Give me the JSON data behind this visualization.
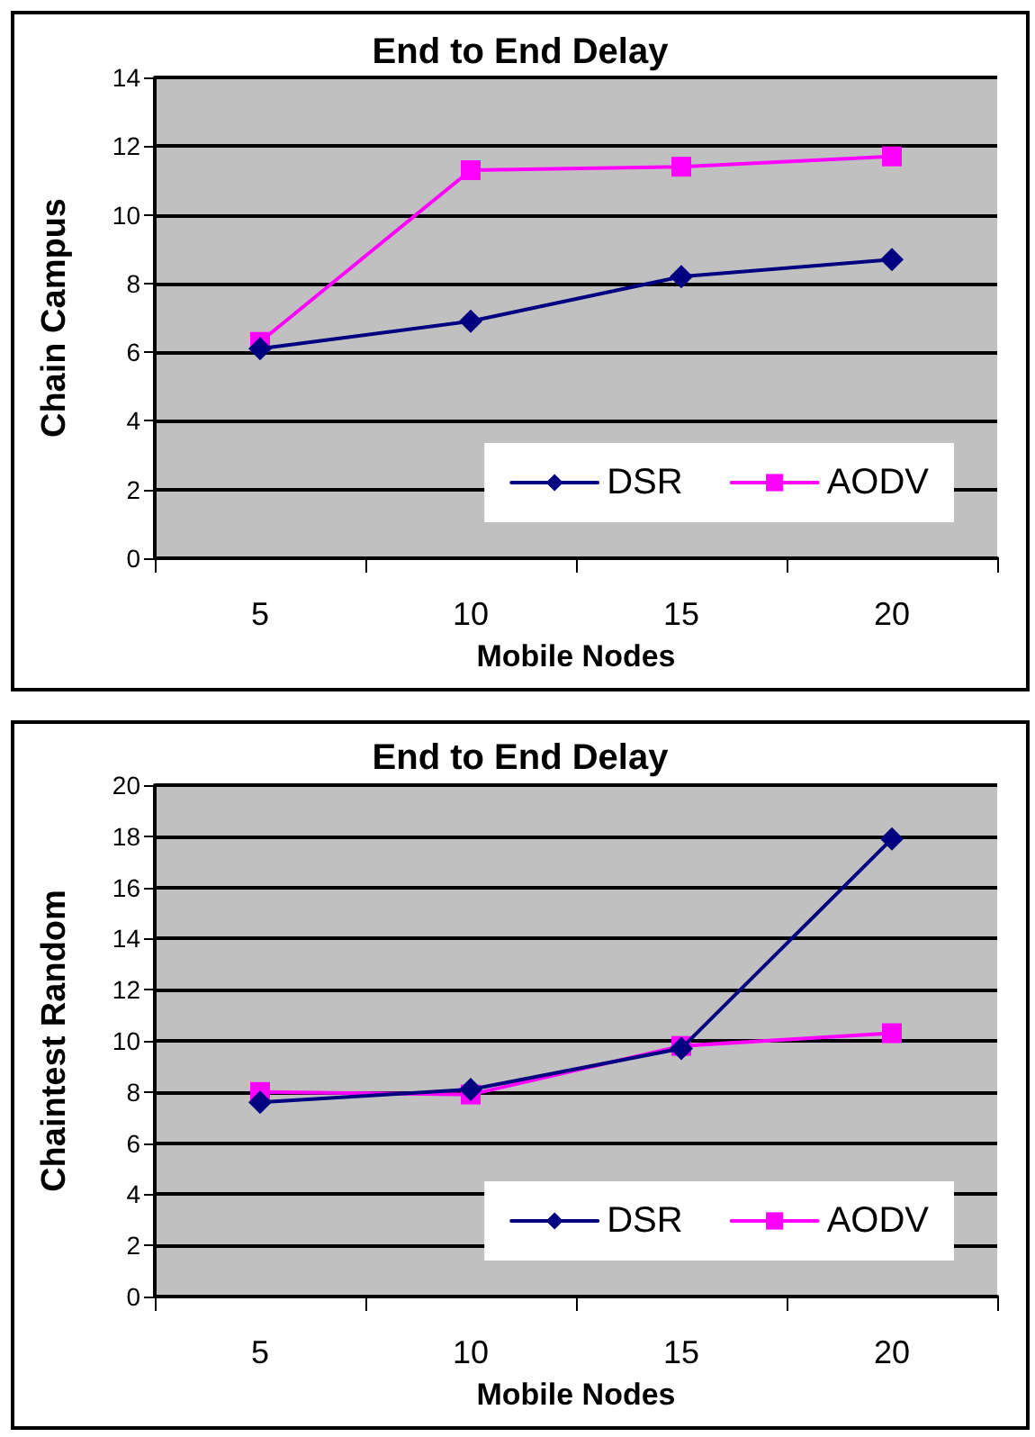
{
  "chart_data": [
    {
      "type": "line",
      "title": "End to End Delay",
      "xlabel": "Mobile Nodes",
      "ylabel": "Chain Campus",
      "categories": [
        "5",
        "10",
        "15",
        "20"
      ],
      "series": [
        {
          "name": "DSR",
          "color": "#000080",
          "marker": "diamond",
          "values": [
            6.1,
            6.9,
            8.2,
            8.7
          ]
        },
        {
          "name": "AODV",
          "color": "#ff00ff",
          "marker": "square",
          "values": [
            6.3,
            11.3,
            11.4,
            11.7
          ]
        }
      ],
      "ylim": [
        0,
        14
      ],
      "yticks": [
        0,
        2,
        4,
        6,
        8,
        10,
        12,
        14
      ],
      "grid": "y",
      "legend": "bottom right",
      "line_style": "solid"
    },
    {
      "type": "line",
      "title": "End to End Delay",
      "xlabel": "Mobile Nodes",
      "ylabel": "Chaintest Random",
      "categories": [
        "5",
        "10",
        "15",
        "20"
      ],
      "series": [
        {
          "name": "DSR",
          "color": "#000080",
          "marker": "diamond",
          "values": [
            7.6,
            8.1,
            9.7,
            17.9
          ]
        },
        {
          "name": "AODV",
          "color": "#ff00ff",
          "marker": "square",
          "values": [
            8.0,
            7.9,
            9.8,
            10.3
          ]
        }
      ],
      "ylim": [
        0,
        20
      ],
      "yticks": [
        0,
        2,
        4,
        6,
        8,
        10,
        12,
        14,
        16,
        18,
        20
      ],
      "grid": "y",
      "legend": "bottom right",
      "line_style": "solid"
    }
  ]
}
